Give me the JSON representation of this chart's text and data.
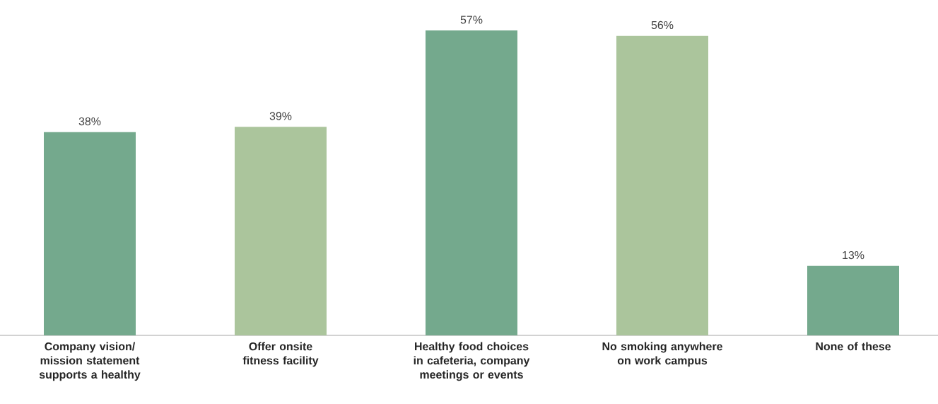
{
  "chart_data": {
    "type": "bar",
    "categories": [
      "Company vision/ mission statement supports a healthy",
      "Offer onsite fitness facility",
      "Healthy food choices in cafeteria, company meetings or events",
      "No smoking anywhere on work campus",
      "None of these"
    ],
    "values": [
      38,
      39,
      57,
      56,
      13
    ],
    "colors": [
      "#74a98d",
      "#abc59c",
      "#74a98d",
      "#abc59c",
      "#74a98d"
    ],
    "value_labels": [
      "38%",
      "39%",
      "57%",
      "56%",
      "13%"
    ]
  }
}
